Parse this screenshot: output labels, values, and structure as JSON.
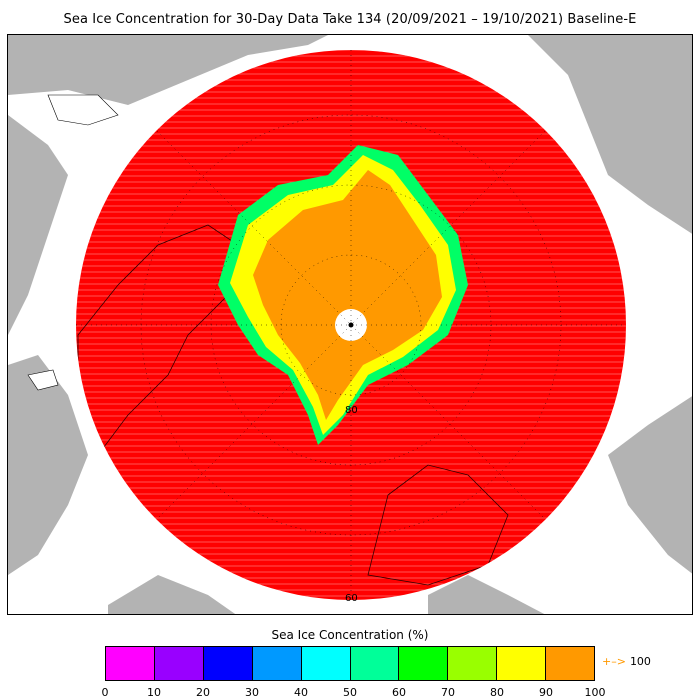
{
  "title": "Sea Ice Concentration for 30-Day Data Take 134 (20/09/2021 – 19/10/2021) Baseline-E",
  "colorbar": {
    "title": "Sea Ice Concentration (%)",
    "ticks": [
      "0",
      "10",
      "20",
      "30",
      "40",
      "50",
      "60",
      "70",
      "80",
      "90",
      "100"
    ],
    "colors": [
      "#ff00ff",
      "#9900ff",
      "#0000ff",
      "#0099ff",
      "#00ffff",
      "#00ff99",
      "#00ff00",
      "#99ff00",
      "#ffff00",
      "#ff9900"
    ],
    "overflow_label": "100",
    "overflow_arrow": "+–>"
  },
  "map": {
    "lat_labels": [
      "80",
      "60"
    ],
    "land_color": "#b3b3b3",
    "ocean_color": "#ff0000",
    "pole_hole_color": "#ffffff"
  }
}
